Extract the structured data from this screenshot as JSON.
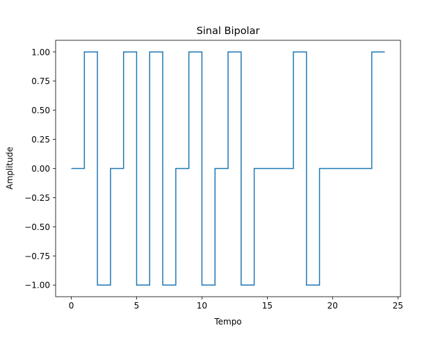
{
  "chart_data": {
    "type": "line",
    "drawstyle": "steps-post",
    "title": "Sinal Bipolar",
    "xlabel": "Tempo",
    "ylabel": "Amplitude",
    "xlim": [
      -1.2,
      25.2
    ],
    "ylim": [
      -1.1,
      1.1
    ],
    "xticks": [
      0,
      5,
      10,
      15,
      20,
      25
    ],
    "xtick_labels": [
      "0",
      "5",
      "10",
      "15",
      "20",
      "25"
    ],
    "yticks": [
      -1.0,
      -0.75,
      -0.5,
      -0.25,
      0.0,
      0.25,
      0.5,
      0.75,
      1.0
    ],
    "ytick_labels": [
      "−1.00",
      "−0.75",
      "−0.50",
      "−0.25",
      "0.00",
      "0.25",
      "0.50",
      "0.75",
      "1.00"
    ],
    "grid": false,
    "series": [
      {
        "color": "#1f77b4",
        "x": [
          0,
          1,
          2,
          3,
          4,
          5,
          6,
          7,
          8,
          9,
          10,
          11,
          12,
          13,
          14,
          15,
          16,
          17,
          18,
          19,
          20,
          21,
          22,
          23,
          24
        ],
        "y": [
          0,
          1,
          -1,
          0,
          1,
          -1,
          1,
          -1,
          0,
          1,
          -1,
          0,
          1,
          -1,
          0,
          0,
          0,
          1,
          -1,
          0,
          0,
          0,
          0,
          1,
          1
        ]
      }
    ]
  }
}
